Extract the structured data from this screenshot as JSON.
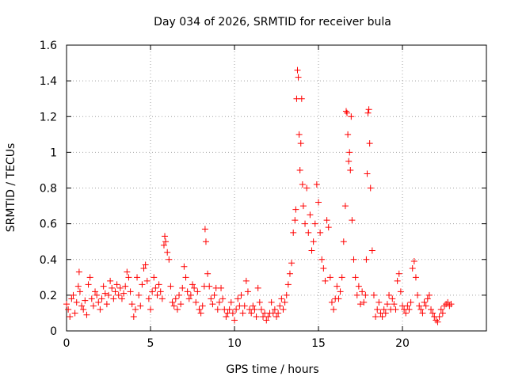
{
  "chart_data": {
    "type": "scatter",
    "title": "Day 034 of 2026, SRMTID for receiver bula",
    "xlabel": "GPS time / hours",
    "ylabel": "SRMTID / TECUs",
    "xlim": [
      0,
      25.0
    ],
    "ylim": [
      0,
      1.6
    ],
    "x_ticks": [
      0,
      5,
      10,
      15,
      20
    ],
    "x_tick_labels": [
      "0",
      "5",
      "10",
      "15",
      "20"
    ],
    "y_ticks": [
      0,
      0.2,
      0.4,
      0.6,
      0.8,
      1,
      1.2,
      1.4,
      1.6
    ],
    "y_tick_labels": [
      "0",
      "0.2",
      "0.4",
      "0.6",
      "0.8",
      "1",
      "1.2",
      "1.4",
      "1.6"
    ],
    "grid": true,
    "marker": "+",
    "color": "#ff0000",
    "series": [
      {
        "name": "SRMTID",
        "points": [
          [
            0.0,
            0.15
          ],
          [
            0.1,
            0.12
          ],
          [
            0.2,
            0.08
          ],
          [
            0.3,
            0.18
          ],
          [
            0.4,
            0.2
          ],
          [
            0.5,
            0.1
          ],
          [
            0.6,
            0.16
          ],
          [
            0.7,
            0.25
          ],
          [
            0.75,
            0.33
          ],
          [
            0.8,
            0.22
          ],
          [
            0.9,
            0.14
          ],
          [
            1.0,
            0.12
          ],
          [
            1.1,
            0.17
          ],
          [
            1.2,
            0.09
          ],
          [
            1.3,
            0.26
          ],
          [
            1.4,
            0.3
          ],
          [
            1.5,
            0.18
          ],
          [
            1.6,
            0.14
          ],
          [
            1.7,
            0.22
          ],
          [
            1.8,
            0.2
          ],
          [
            1.9,
            0.16
          ],
          [
            2.0,
            0.12
          ],
          [
            2.1,
            0.18
          ],
          [
            2.2,
            0.25
          ],
          [
            2.3,
            0.21
          ],
          [
            2.4,
            0.15
          ],
          [
            2.5,
            0.2
          ],
          [
            2.6,
            0.28
          ],
          [
            2.7,
            0.24
          ],
          [
            2.8,
            0.18
          ],
          [
            2.9,
            0.22
          ],
          [
            3.0,
            0.26
          ],
          [
            3.1,
            0.2
          ],
          [
            3.2,
            0.24
          ],
          [
            3.3,
            0.18
          ],
          [
            3.4,
            0.21
          ],
          [
            3.5,
            0.25
          ],
          [
            3.6,
            0.33
          ],
          [
            3.7,
            0.3
          ],
          [
            3.8,
            0.22
          ],
          [
            3.9,
            0.15
          ],
          [
            4.0,
            0.08
          ],
          [
            4.1,
            0.12
          ],
          [
            4.2,
            0.3
          ],
          [
            4.3,
            0.2
          ],
          [
            4.4,
            0.14
          ],
          [
            4.5,
            0.26
          ],
          [
            4.6,
            0.35
          ],
          [
            4.7,
            0.37
          ],
          [
            4.8,
            0.28
          ],
          [
            4.9,
            0.18
          ],
          [
            5.0,
            0.12
          ],
          [
            5.1,
            0.22
          ],
          [
            5.2,
            0.3
          ],
          [
            5.3,
            0.24
          ],
          [
            5.4,
            0.2
          ],
          [
            5.5,
            0.26
          ],
          [
            5.6,
            0.22
          ],
          [
            5.7,
            0.18
          ],
          [
            5.8,
            0.48
          ],
          [
            5.85,
            0.53
          ],
          [
            5.9,
            0.5
          ],
          [
            6.0,
            0.44
          ],
          [
            6.1,
            0.4
          ],
          [
            6.2,
            0.25
          ],
          [
            6.3,
            0.16
          ],
          [
            6.4,
            0.14
          ],
          [
            6.5,
            0.18
          ],
          [
            6.6,
            0.12
          ],
          [
            6.7,
            0.2
          ],
          [
            6.8,
            0.15
          ],
          [
            6.9,
            0.24
          ],
          [
            7.0,
            0.36
          ],
          [
            7.1,
            0.3
          ],
          [
            7.2,
            0.22
          ],
          [
            7.3,
            0.18
          ],
          [
            7.4,
            0.2
          ],
          [
            7.5,
            0.26
          ],
          [
            7.6,
            0.24
          ],
          [
            7.7,
            0.16
          ],
          [
            7.8,
            0.22
          ],
          [
            7.9,
            0.12
          ],
          [
            8.0,
            0.1
          ],
          [
            8.1,
            0.14
          ],
          [
            8.2,
            0.25
          ],
          [
            8.25,
            0.57
          ],
          [
            8.3,
            0.5
          ],
          [
            8.4,
            0.32
          ],
          [
            8.5,
            0.25
          ],
          [
            8.6,
            0.18
          ],
          [
            8.7,
            0.15
          ],
          [
            8.8,
            0.2
          ],
          [
            8.9,
            0.24
          ],
          [
            9.0,
            0.12
          ],
          [
            9.1,
            0.16
          ],
          [
            9.2,
            0.24
          ],
          [
            9.3,
            0.18
          ],
          [
            9.4,
            0.12
          ],
          [
            9.5,
            0.08
          ],
          [
            9.6,
            0.1
          ],
          [
            9.7,
            0.12
          ],
          [
            9.8,
            0.16
          ],
          [
            9.9,
            0.1
          ],
          [
            10.0,
            0.06
          ],
          [
            10.1,
            0.12
          ],
          [
            10.2,
            0.18
          ],
          [
            10.3,
            0.14
          ],
          [
            10.4,
            0.2
          ],
          [
            10.5,
            0.1
          ],
          [
            10.6,
            0.14
          ],
          [
            10.7,
            0.28
          ],
          [
            10.8,
            0.22
          ],
          [
            10.9,
            0.12
          ],
          [
            11.0,
            0.1
          ],
          [
            11.1,
            0.14
          ],
          [
            11.2,
            0.12
          ],
          [
            11.3,
            0.08
          ],
          [
            11.4,
            0.24
          ],
          [
            11.5,
            0.16
          ],
          [
            11.6,
            0.12
          ],
          [
            11.7,
            0.08
          ],
          [
            11.8,
            0.1
          ],
          [
            11.9,
            0.06
          ],
          [
            12.0,
            0.08
          ],
          [
            12.1,
            0.1
          ],
          [
            12.2,
            0.16
          ],
          [
            12.3,
            0.1
          ],
          [
            12.4,
            0.12
          ],
          [
            12.5,
            0.08
          ],
          [
            12.6,
            0.1
          ],
          [
            12.7,
            0.14
          ],
          [
            12.8,
            0.18
          ],
          [
            12.9,
            0.12
          ],
          [
            13.0,
            0.16
          ],
          [
            13.1,
            0.2
          ],
          [
            13.2,
            0.26
          ],
          [
            13.3,
            0.32
          ],
          [
            13.4,
            0.38
          ],
          [
            13.5,
            0.55
          ],
          [
            13.6,
            0.62
          ],
          [
            13.65,
            0.68
          ],
          [
            13.7,
            1.3
          ],
          [
            13.75,
            1.46
          ],
          [
            13.8,
            1.42
          ],
          [
            13.85,
            1.1
          ],
          [
            13.9,
            0.9
          ],
          [
            13.95,
            1.05
          ],
          [
            14.0,
            1.3
          ],
          [
            14.05,
            0.82
          ],
          [
            14.1,
            0.7
          ],
          [
            14.2,
            0.6
          ],
          [
            14.3,
            0.8
          ],
          [
            14.4,
            0.55
          ],
          [
            14.5,
            0.65
          ],
          [
            14.6,
            0.45
          ],
          [
            14.7,
            0.5
          ],
          [
            14.8,
            0.6
          ],
          [
            14.9,
            0.82
          ],
          [
            15.0,
            0.72
          ],
          [
            15.1,
            0.55
          ],
          [
            15.2,
            0.4
          ],
          [
            15.3,
            0.35
          ],
          [
            15.4,
            0.28
          ],
          [
            15.5,
            0.62
          ],
          [
            15.6,
            0.58
          ],
          [
            15.7,
            0.3
          ],
          [
            15.8,
            0.16
          ],
          [
            15.9,
            0.12
          ],
          [
            16.0,
            0.18
          ],
          [
            16.1,
            0.25
          ],
          [
            16.2,
            0.18
          ],
          [
            16.3,
            0.22
          ],
          [
            16.4,
            0.3
          ],
          [
            16.5,
            0.5
          ],
          [
            16.6,
            0.7
          ],
          [
            16.65,
            1.23
          ],
          [
            16.7,
            1.22
          ],
          [
            16.75,
            1.1
          ],
          [
            16.8,
            0.95
          ],
          [
            16.85,
            1.0
          ],
          [
            16.9,
            0.9
          ],
          [
            16.95,
            1.2
          ],
          [
            17.0,
            0.62
          ],
          [
            17.1,
            0.4
          ],
          [
            17.2,
            0.3
          ],
          [
            17.3,
            0.2
          ],
          [
            17.4,
            0.25
          ],
          [
            17.5,
            0.15
          ],
          [
            17.6,
            0.22
          ],
          [
            17.7,
            0.16
          ],
          [
            17.8,
            0.2
          ],
          [
            17.85,
            0.4
          ],
          [
            17.9,
            0.88
          ],
          [
            17.95,
            1.22
          ],
          [
            18.0,
            1.24
          ],
          [
            18.05,
            1.05
          ],
          [
            18.1,
            0.8
          ],
          [
            18.2,
            0.45
          ],
          [
            18.3,
            0.2
          ],
          [
            18.4,
            0.08
          ],
          [
            18.5,
            0.12
          ],
          [
            18.6,
            0.16
          ],
          [
            18.7,
            0.1
          ],
          [
            18.8,
            0.08
          ],
          [
            18.9,
            0.12
          ],
          [
            19.0,
            0.1
          ],
          [
            19.1,
            0.15
          ],
          [
            19.2,
            0.2
          ],
          [
            19.3,
            0.12
          ],
          [
            19.4,
            0.18
          ],
          [
            19.5,
            0.15
          ],
          [
            19.6,
            0.12
          ],
          [
            19.7,
            0.28
          ],
          [
            19.8,
            0.32
          ],
          [
            19.9,
            0.22
          ],
          [
            20.0,
            0.14
          ],
          [
            20.1,
            0.12
          ],
          [
            20.2,
            0.1
          ],
          [
            20.3,
            0.14
          ],
          [
            20.4,
            0.12
          ],
          [
            20.5,
            0.16
          ],
          [
            20.6,
            0.35
          ],
          [
            20.7,
            0.39
          ],
          [
            20.8,
            0.3
          ],
          [
            20.9,
            0.2
          ],
          [
            21.0,
            0.14
          ],
          [
            21.1,
            0.12
          ],
          [
            21.2,
            0.1
          ],
          [
            21.3,
            0.16
          ],
          [
            21.4,
            0.14
          ],
          [
            21.5,
            0.18
          ],
          [
            21.6,
            0.2
          ],
          [
            21.7,
            0.12
          ],
          [
            21.8,
            0.1
          ],
          [
            21.9,
            0.08
          ],
          [
            22.0,
            0.06
          ],
          [
            22.1,
            0.05
          ],
          [
            22.2,
            0.08
          ],
          [
            22.3,
            0.12
          ],
          [
            22.4,
            0.1
          ],
          [
            22.5,
            0.14
          ],
          [
            22.6,
            0.15
          ],
          [
            22.7,
            0.16
          ],
          [
            22.8,
            0.14
          ],
          [
            22.9,
            0.15
          ]
        ]
      }
    ]
  }
}
